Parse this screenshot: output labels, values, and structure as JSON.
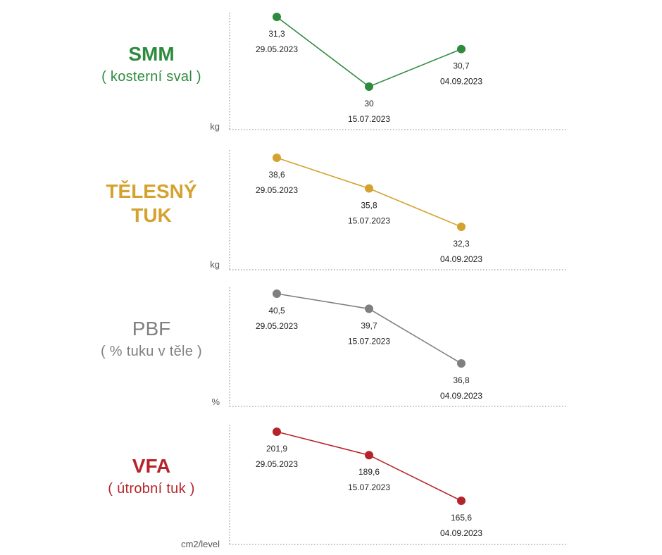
{
  "chart_data": [
    {
      "type": "line",
      "title": "SMM",
      "subtitle": "( kosterní sval )",
      "unit": "kg",
      "color": "#2e8b3e",
      "x": [
        "29.05.2023",
        "15.07.2023",
        "04.09.2023"
      ],
      "values": [
        31.3,
        30,
        30.7
      ],
      "value_labels": [
        "31,3",
        "30",
        "30,7"
      ],
      "grid": false
    },
    {
      "type": "line",
      "title": "TĚLESNÝ TUK",
      "title_lines": [
        "TĚLESNÝ",
        "TUK"
      ],
      "subtitle": "",
      "unit": "kg",
      "color": "#d4a22f",
      "x": [
        "29.05.2023",
        "15.07.2023",
        "04.09.2023"
      ],
      "values": [
        38.6,
        35.8,
        32.3
      ],
      "value_labels": [
        "38,6",
        "35,8",
        "32,3"
      ],
      "grid": false
    },
    {
      "type": "line",
      "title": "PBF",
      "subtitle": "( % tuku v těle )",
      "unit": "%",
      "color": "#7f7f7f",
      "x": [
        "29.05.2023",
        "15.07.2023",
        "04.09.2023"
      ],
      "values": [
        40.5,
        39.7,
        36.8
      ],
      "value_labels": [
        "40,5",
        "39,7",
        "36,8"
      ],
      "grid": false
    },
    {
      "type": "line",
      "title": "VFA",
      "subtitle": "( útrobní tuk )",
      "unit": "cm2/level",
      "color": "#b5242a",
      "x": [
        "29.05.2023",
        "15.07.2023",
        "04.09.2023"
      ],
      "values": [
        201.9,
        189.6,
        165.6
      ],
      "value_labels": [
        "201,9",
        "189,6",
        "165,6"
      ],
      "grid": false
    }
  ]
}
